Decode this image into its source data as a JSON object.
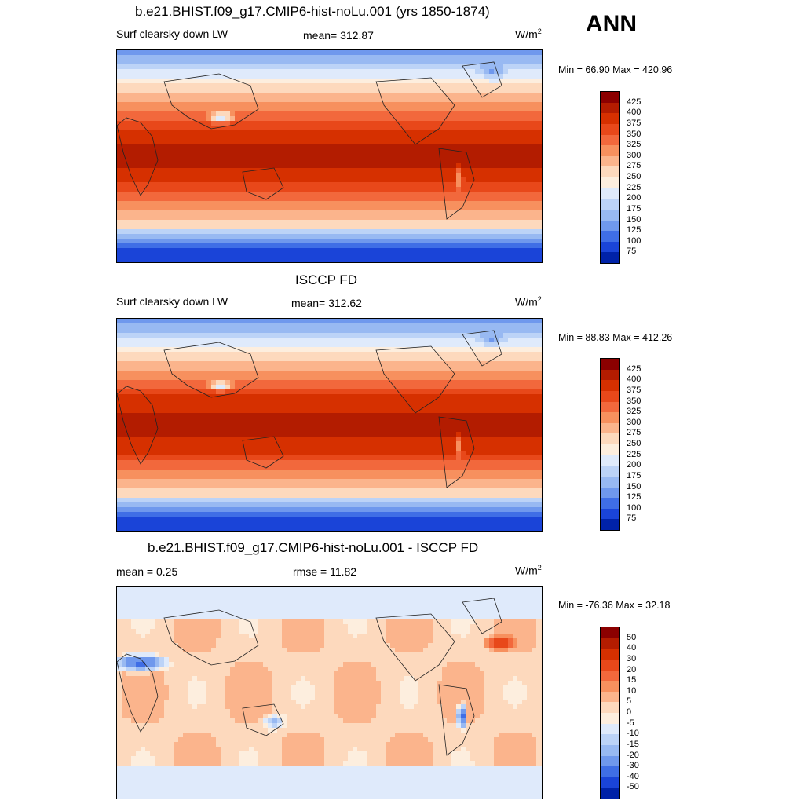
{
  "season": "ANN",
  "panels": [
    {
      "title": "b.e21.BHIST.f09_g17.CMIP6-hist-noLu.001 (yrs 1850-1874)",
      "left_label": "Surf clearsky down LW",
      "mid_label": "mean= 312.87",
      "units": "W/m",
      "units_sup": "2",
      "minmax": "Min =  66.90 Max = 420.96",
      "kind": "model"
    },
    {
      "title": "ISCCP FD",
      "left_label": "Surf clearsky down LW",
      "mid_label": "mean= 312.62",
      "units": "W/m",
      "units_sup": "2",
      "minmax": "Min =  88.83 Max = 412.26",
      "kind": "obs"
    },
    {
      "title": "b.e21.BHIST.f09_g17.CMIP6-hist-noLu.001 - ISCCP FD",
      "left_label": "mean =   0.25",
      "mid_label": "rmse =  11.82",
      "units": "W/m",
      "units_sup": "2",
      "minmax": "Min = -76.36 Max =  32.18",
      "kind": "diff"
    }
  ],
  "colorbars": {
    "absolute": {
      "labels": [
        "425",
        "400",
        "375",
        "350",
        "325",
        "300",
        "275",
        "250",
        "225",
        "200",
        "175",
        "150",
        "125",
        "100",
        "75"
      ],
      "colors": [
        "#8b0000",
        "#b31c00",
        "#d63000",
        "#e8481a",
        "#f2683c",
        "#f7905e",
        "#fbb48c",
        "#fdd9bd",
        "#fdeede",
        "#dfeafb",
        "#bcd3f7",
        "#98b9f2",
        "#6f98ed",
        "#3f6ee6",
        "#1a44d8",
        "#0022a8"
      ]
    },
    "difference": {
      "labels": [
        "50",
        "40",
        "30",
        "20",
        "15",
        "10",
        "5",
        "0",
        "-5",
        "-10",
        "-15",
        "-20",
        "-30",
        "-40",
        "-50"
      ],
      "colors": [
        "#8b0000",
        "#b31c00",
        "#d63000",
        "#e8481a",
        "#f2683c",
        "#f7905e",
        "#fbb48c",
        "#fdd9bd",
        "#fdeede",
        "#dfeafb",
        "#bcd3f7",
        "#98b9f2",
        "#6f98ed",
        "#3f6ee6",
        "#1a44d8",
        "#0022a8"
      ]
    }
  }
}
